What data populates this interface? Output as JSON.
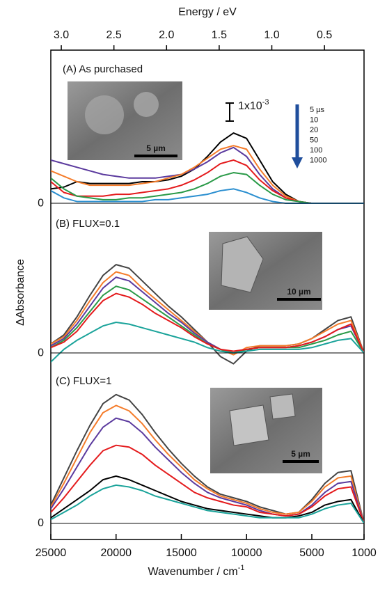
{
  "chart_data": {
    "type": "line",
    "top_label": "Energy /  eV",
    "y_label": "ΔAbsorbance",
    "x_label": "Wavenumber /  cm",
    "x_label_superscript": "-1",
    "x": [
      25000,
      24000,
      23000,
      22000,
      21000,
      20000,
      19000,
      18000,
      17000,
      16000,
      15000,
      14000,
      13000,
      12000,
      11000,
      10000,
      9000,
      8000,
      7000,
      6000,
      5000,
      4000,
      3000,
      2000,
      1000
    ],
    "xlim": [
      25000,
      1000
    ],
    "xticks": [
      25000,
      20000,
      15000,
      10000,
      5000,
      1000
    ],
    "x2ticks": [
      {
        "value": 3,
        "label": "3.0"
      },
      2.5,
      {
        "value": 2,
        "label": "2.0"
      },
      1.5,
      {
        "value": 1,
        "label": "1.0"
      },
      0.5
    ],
    "scale_bar": {
      "value": 0.001,
      "label": "1x10",
      "label_superscript": "-3"
    },
    "panels": [
      {
        "title": "(A) As purchased",
        "ylim": [
          -0.0005,
          0.0085
        ],
        "yticks": [
          0
        ],
        "inset_scale_label": "5 µm",
        "series": [
          {
            "name": "5 µs",
            "color": "#000000",
            "values": [
              0.0008,
              0.0009,
              0.0012,
              0.0011,
              0.0011,
              0.0011,
              0.0011,
              0.0012,
              0.0012,
              0.0013,
              0.0015,
              0.0019,
              0.0026,
              0.0034,
              0.0039,
              0.0036,
              0.0024,
              0.0012,
              0.0005,
              0.0001,
              0,
              0,
              0,
              0,
              0
            ]
          },
          {
            "name": "10",
            "color": "#5b3a9e",
            "values": [
              0.0024,
              0.0022,
              0.002,
              0.0018,
              0.0016,
              0.0015,
              0.0014,
              0.0014,
              0.0014,
              0.0015,
              0.0016,
              0.0019,
              0.0023,
              0.0028,
              0.0031,
              0.0026,
              0.0016,
              0.0008,
              0.0003,
              0.0001,
              0,
              0,
              0,
              0,
              0
            ]
          },
          {
            "name": "20",
            "color": "#f57c2a",
            "values": [
              0.0018,
              0.0015,
              0.0012,
              0.001,
              0.001,
              0.001,
              0.001,
              0.0011,
              0.0012,
              0.0014,
              0.0016,
              0.002,
              0.0025,
              0.003,
              0.0032,
              0.003,
              0.0019,
              0.001,
              0.0004,
              0.0001,
              0,
              0,
              0,
              0,
              0
            ]
          },
          {
            "name": "50",
            "color": "#e41a1c",
            "values": [
              0.0012,
              0.0006,
              0.0004,
              0.0004,
              0.0004,
              0.0005,
              0.0005,
              0.0006,
              0.0007,
              0.0008,
              0.001,
              0.0013,
              0.0017,
              0.0022,
              0.0024,
              0.0021,
              0.0013,
              0.0007,
              0.0003,
              0.0001,
              0,
              0,
              0,
              0,
              0
            ]
          },
          {
            "name": "100",
            "color": "#2a9a48",
            "values": [
              0.0014,
              0.0008,
              0.0004,
              0.0003,
              0.0002,
              0.0002,
              0.0003,
              0.0003,
              0.0004,
              0.0005,
              0.0006,
              0.0008,
              0.0011,
              0.0015,
              0.0017,
              0.0016,
              0.001,
              0.0005,
              0.0002,
              0.0001,
              0,
              0,
              0,
              0,
              0
            ]
          },
          {
            "name": "1000",
            "color": "#2b8fd0",
            "values": [
              0.0007,
              0.0003,
              0.0001,
              0.0001,
              0.0001,
              0.0001,
              0.0001,
              0.0001,
              0.0002,
              0.0002,
              0.0003,
              0.0004,
              0.0005,
              0.0007,
              0.0008,
              0.0006,
              0.0003,
              0.0001,
              0,
              0,
              0,
              0,
              0,
              0,
              0
            ]
          }
        ]
      },
      {
        "title": "(B)  FLUX=0.1",
        "ylim": [
          -0.0005,
          0.0078
        ],
        "yticks": [
          0
        ],
        "inset_scale_label": "10 µm",
        "series": [
          {
            "color": "#444444",
            "values": [
              0.0005,
              0.001,
              0.002,
              0.0032,
              0.0043,
              0.0049,
              0.0047,
              0.004,
              0.0033,
              0.0026,
              0.002,
              0.0013,
              0.0006,
              -0.0002,
              -0.0006,
              0.0001,
              0.0004,
              0.0004,
              0.0004,
              0.0005,
              0.0008,
              0.0013,
              0.0018,
              0.002,
              0
            ]
          },
          {
            "color": "#f57c2a",
            "values": [
              0.0005,
              0.0009,
              0.0018,
              0.0029,
              0.0039,
              0.0045,
              0.0043,
              0.0036,
              0.003,
              0.0024,
              0.0018,
              0.0012,
              0.0006,
              0.0002,
              -0.0001,
              0.0003,
              0.0004,
              0.0004,
              0.0004,
              0.0005,
              0.0008,
              0.0012,
              0.0016,
              0.0018,
              0
            ]
          },
          {
            "color": "#5b3a9e",
            "values": [
              0.0004,
              0.0008,
              0.0016,
              0.0026,
              0.0036,
              0.0042,
              0.004,
              0.0034,
              0.0028,
              0.0022,
              0.0017,
              0.0011,
              0.0006,
              0.0002,
              0,
              0.0002,
              0.0003,
              0.0003,
              0.0003,
              0.0004,
              0.0006,
              0.0009,
              0.0013,
              0.0015,
              0
            ]
          },
          {
            "color": "#2a9a48",
            "values": [
              0.0003,
              0.0007,
              0.0014,
              0.0023,
              0.0032,
              0.0037,
              0.0035,
              0.003,
              0.0025,
              0.002,
              0.0015,
              0.001,
              0.0005,
              0.0002,
              0,
              0.0002,
              0.0003,
              0.0003,
              0.0003,
              0.0003,
              0.0005,
              0.0007,
              0.001,
              0.0012,
              0
            ]
          },
          {
            "color": "#e41a1c",
            "values": [
              0.0003,
              0.0006,
              0.0012,
              0.0021,
              0.0029,
              0.0033,
              0.0031,
              0.0027,
              0.0022,
              0.0018,
              0.0014,
              0.0009,
              0.0005,
              0.0002,
              0.0001,
              0.0002,
              0.0003,
              0.0003,
              0.0003,
              0.0004,
              0.0006,
              0.0009,
              0.0013,
              0.0016,
              0
            ]
          },
          {
            "color": "#1aa39a",
            "values": [
              -0.0005,
              0.0002,
              0.0007,
              0.0011,
              0.0015,
              0.0017,
              0.0016,
              0.0014,
              0.0012,
              0.001,
              0.0008,
              0.0006,
              0.0003,
              0.0001,
              0,
              0.0001,
              0.0002,
              0.0002,
              0.0002,
              0.0002,
              0.0003,
              0.0005,
              0.0007,
              0.0008,
              0
            ]
          }
        ]
      },
      {
        "title": "(C)  FLUX=1",
        "ylim": [
          -0.0009,
          0.0089
        ],
        "yticks": [
          0
        ],
        "inset_scale_label": "5 µm",
        "series": [
          {
            "color": "#444444",
            "values": [
              0.001,
              0.0025,
              0.004,
              0.0054,
              0.0066,
              0.0071,
              0.0068,
              0.006,
              0.005,
              0.0041,
              0.0033,
              0.0026,
              0.002,
              0.0016,
              0.0014,
              0.0012,
              0.0009,
              0.0007,
              0.0005,
              0.0006,
              0.0013,
              0.0022,
              0.0028,
              0.0029,
              0
            ]
          },
          {
            "color": "#f57c2a",
            "values": [
              0.0009,
              0.0022,
              0.0036,
              0.005,
              0.0061,
              0.0065,
              0.0062,
              0.0055,
              0.0046,
              0.0038,
              0.0031,
              0.0024,
              0.0019,
              0.0015,
              0.0013,
              0.0011,
              0.0008,
              0.0006,
              0.0005,
              0.0006,
              0.0012,
              0.002,
              0.0025,
              0.0026,
              0
            ]
          },
          {
            "color": "#5b3a9e",
            "values": [
              0.0008,
              0.0019,
              0.0031,
              0.0043,
              0.0053,
              0.0058,
              0.0056,
              0.005,
              0.0042,
              0.0035,
              0.0028,
              0.0022,
              0.0017,
              0.0014,
              0.0012,
              0.001,
              0.0007,
              0.0005,
              0.0004,
              0.0005,
              0.001,
              0.0017,
              0.0022,
              0.0023,
              0
            ]
          },
          {
            "color": "#e41a1c",
            "values": [
              0.0006,
              0.0014,
              0.0023,
              0.0032,
              0.004,
              0.0043,
              0.0042,
              0.0038,
              0.0032,
              0.0027,
              0.0022,
              0.0017,
              0.0014,
              0.0012,
              0.001,
              0.0009,
              0.0006,
              0.0005,
              0.0004,
              0.0005,
              0.0009,
              0.0015,
              0.0019,
              0.002,
              0
            ]
          },
          {
            "color": "#000000",
            "values": [
              0.0003,
              0.0008,
              0.0013,
              0.0018,
              0.0024,
              0.0026,
              0.0024,
              0.0021,
              0.0018,
              0.0015,
              0.0012,
              0.001,
              0.0008,
              0.0007,
              0.0006,
              0.0005,
              0.0004,
              0.0003,
              0.0003,
              0.0004,
              0.0006,
              0.001,
              0.0012,
              0.0013,
              0
            ]
          },
          {
            "color": "#1aa39a",
            "values": [
              0.0002,
              0.0006,
              0.001,
              0.0015,
              0.0019,
              0.0021,
              0.002,
              0.0018,
              0.0015,
              0.0013,
              0.0011,
              0.0009,
              0.0007,
              0.0006,
              0.0005,
              0.0004,
              0.0003,
              0.0003,
              0.0003,
              0.0003,
              0.0005,
              0.0008,
              0.001,
              0.0011,
              0
            ]
          }
        ]
      }
    ]
  }
}
